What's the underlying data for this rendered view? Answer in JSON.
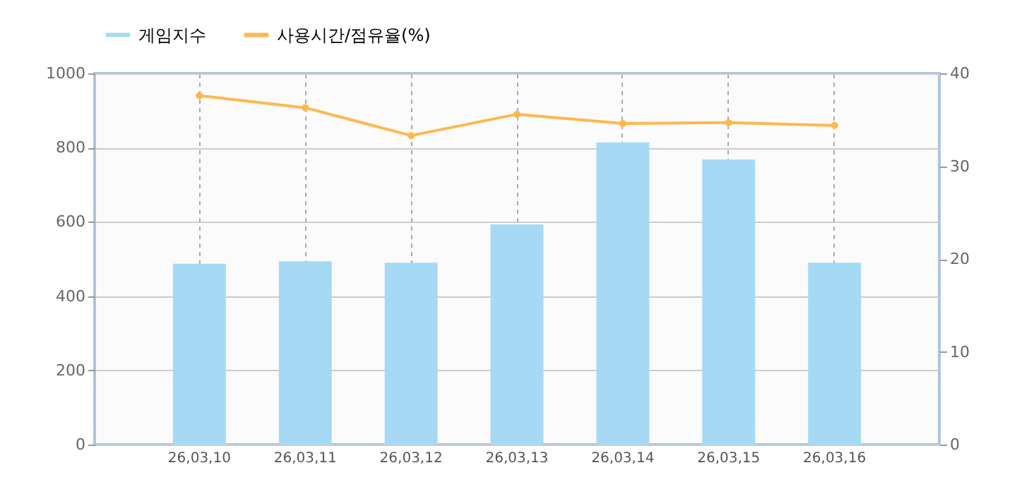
{
  "chart_data": {
    "type": "bar",
    "categories": [
      "26,03,10",
      "26,03,11",
      "26,03,12",
      "26,03,13",
      "26,03,14",
      "26,03,15",
      "26,03,16"
    ],
    "series": [
      {
        "name": "게임지수",
        "color": "#a6daf4",
        "values": [
          487,
          494,
          490,
          593,
          814,
          768,
          490
        ]
      },
      {
        "name": "사용시간/점유율(%)",
        "type": "line",
        "axis": "y2",
        "color": "#ffb84d",
        "values": [
          37.6,
          36.3,
          33.3,
          35.6,
          34.6,
          34.7,
          34.4
        ]
      }
    ],
    "ylim": [
      0,
      1000
    ],
    "yticks": [
      0,
      200,
      400,
      600,
      800,
      1000
    ],
    "y2lim": [
      0,
      40
    ],
    "y2ticks": [
      0,
      10,
      20,
      30,
      40
    ],
    "grid": true,
    "legend": "top left",
    "marker": "circle",
    "line_style": "solid"
  }
}
